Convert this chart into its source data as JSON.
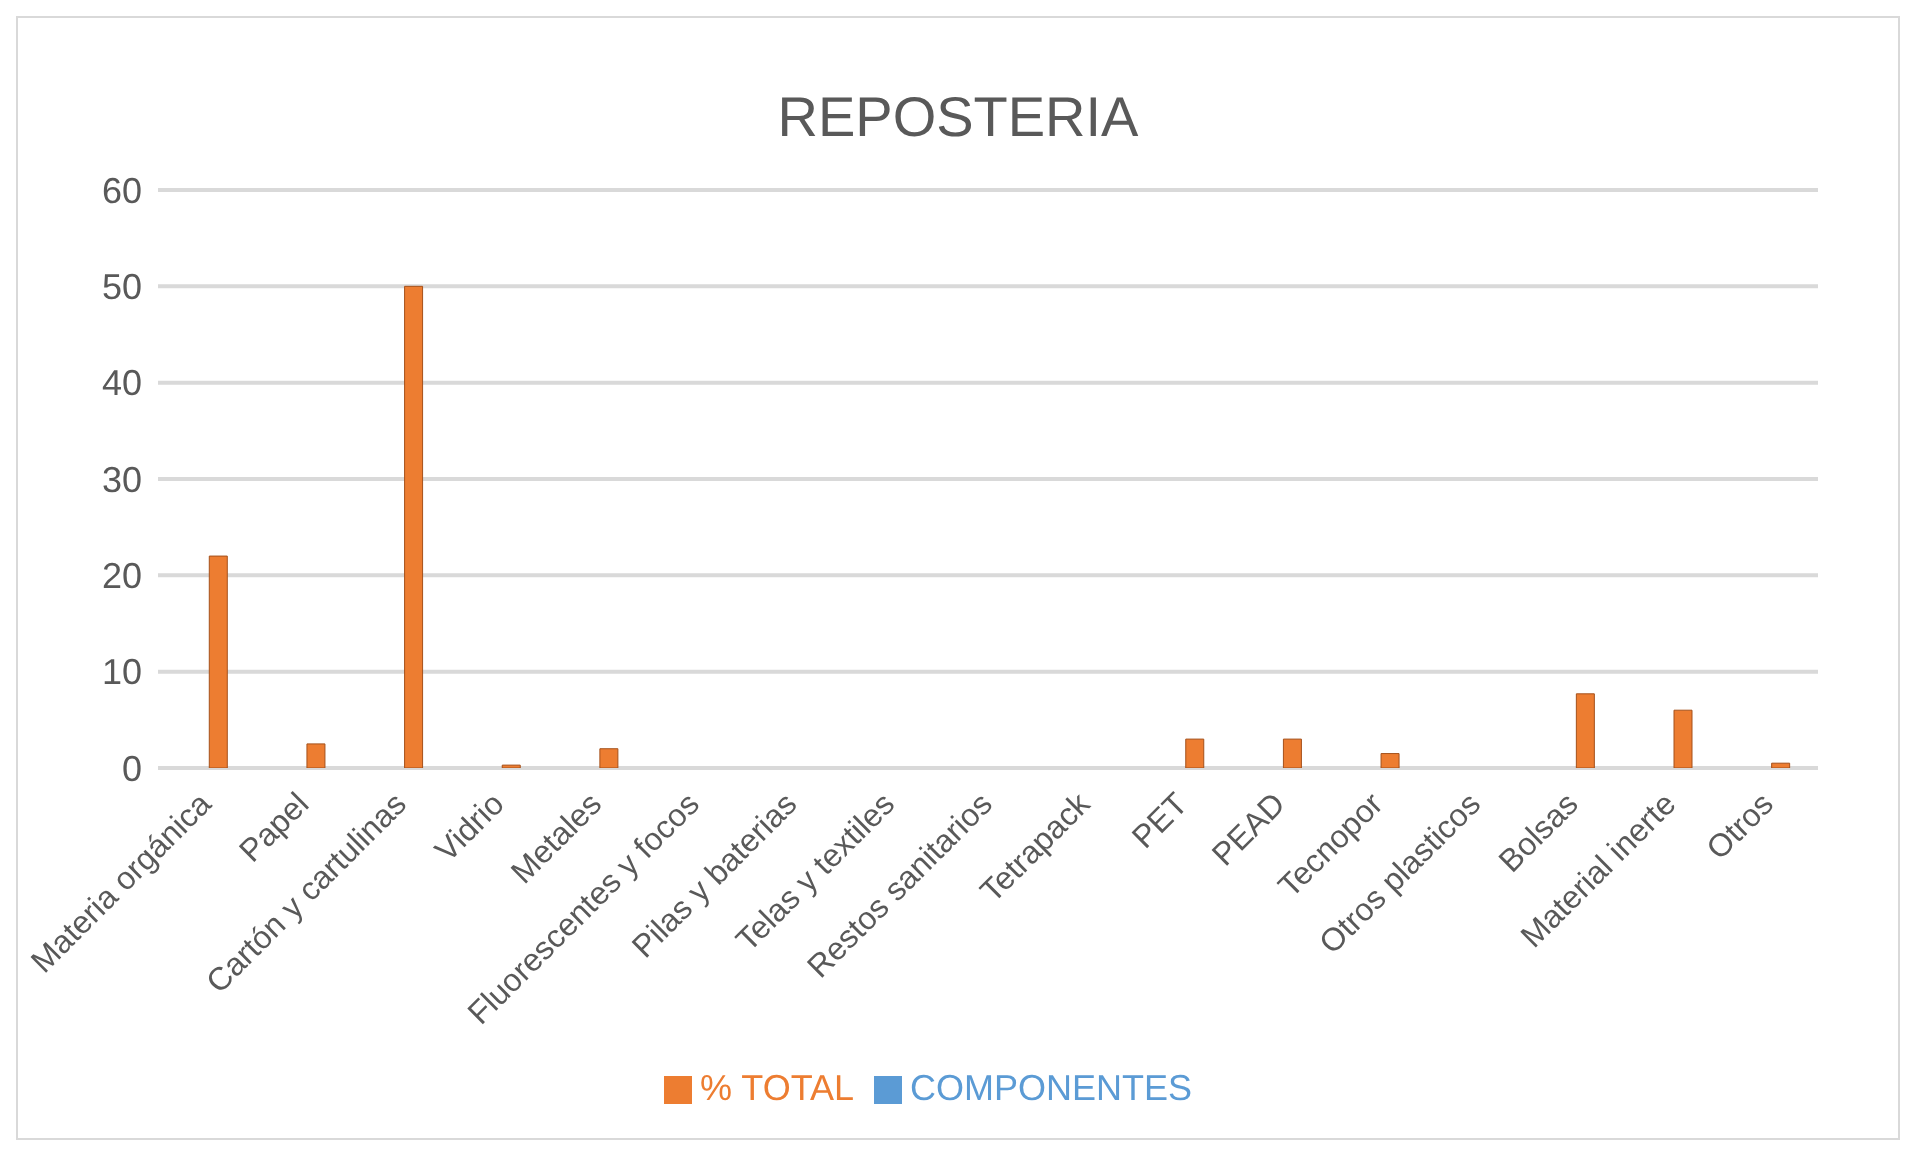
{
  "chart_data": {
    "type": "bar",
    "title": "REPOSTERIA",
    "categories": [
      "Materia orgánica",
      "Papel",
      "Cartón y cartulinas",
      "Vidrio",
      "Metales",
      "Fluorescentes y focos",
      "Pilas y baterias",
      "Telas y textiles",
      "Restos sanitarios",
      "Tetrapack",
      "PET",
      "PEAD",
      "Tecnopor",
      "Otros plasticos",
      "Bolsas",
      "Material inerte",
      "Otros"
    ],
    "series": [
      {
        "name": "COMPONENTES",
        "color": "#5b9bd5",
        "values": [
          null,
          null,
          null,
          null,
          null,
          null,
          null,
          null,
          null,
          null,
          null,
          null,
          null,
          null,
          null,
          null,
          null
        ]
      },
      {
        "name": "% TOTAL",
        "color": "#ed7d31",
        "values": [
          22,
          2.5,
          50,
          0.3,
          2,
          0,
          0,
          0,
          0,
          0,
          3,
          3,
          1.5,
          0,
          7.7,
          6,
          0.5
        ]
      }
    ],
    "ylim": [
      0,
      60
    ],
    "yticks": [
      0,
      10,
      20,
      30,
      40,
      50,
      60
    ],
    "grid": "y",
    "legend": "bottom"
  }
}
